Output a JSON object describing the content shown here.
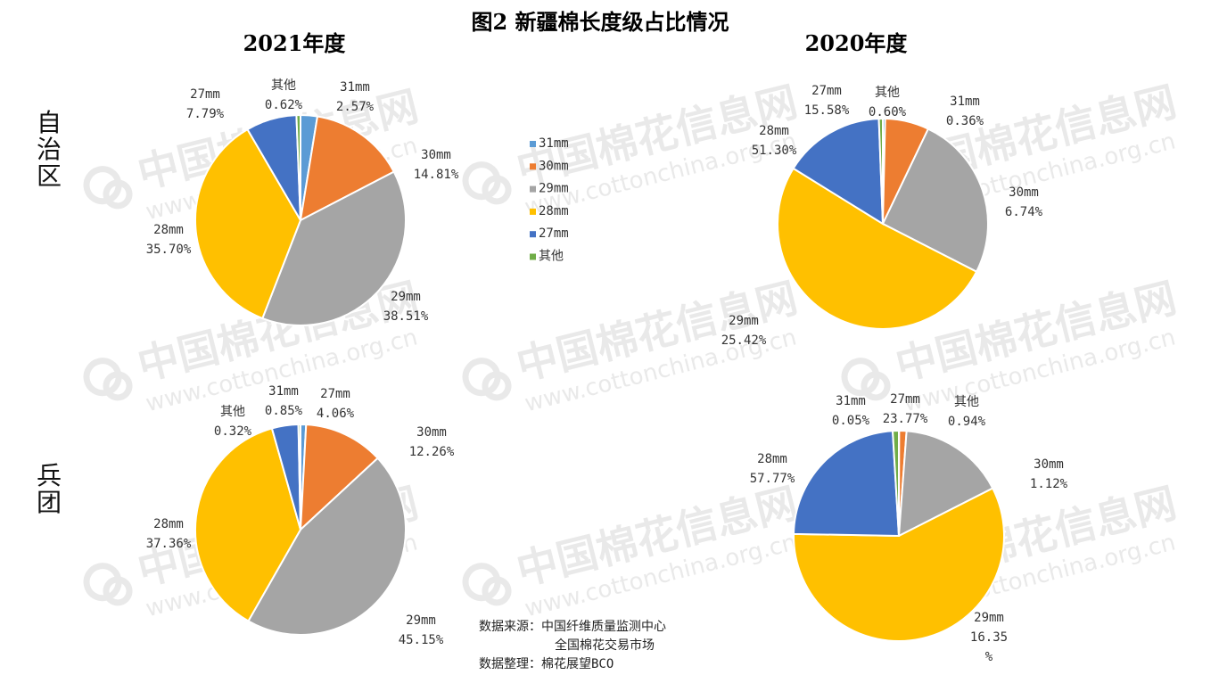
{
  "title": "图2 新疆棉长度级占比情况",
  "watermark": {
    "cn": "中国棉花信息网",
    "url": "www.cottonchina.org.cn"
  },
  "colors": {
    "31mm": "#5B9BD5",
    "30mm": "#ED7D31",
    "29mm": "#A5A5A5",
    "28mm": "#FFC000",
    "27mm": "#4472C4",
    "其他": "#70AD47"
  },
  "legend": {
    "items": [
      "31mm",
      "30mm",
      "29mm",
      "28mm",
      "27mm",
      "其他"
    ]
  },
  "column_labels": [
    "2021年度",
    "2020年度"
  ],
  "row_labels": [
    "自\n治\n区",
    "兵\n团"
  ],
  "source": {
    "line1": "数据来源：中国纤维质量监测中心",
    "line2": "全国棉花交易市场",
    "line3": "数据整理：棉花展望BCO"
  },
  "chart_data": [
    {
      "type": "pie",
      "title": "2021年度",
      "region": "自治区",
      "categories": [
        "31mm",
        "30mm",
        "29mm",
        "28mm",
        "27mm",
        "其他"
      ],
      "values": [
        2.57,
        14.81,
        38.51,
        35.7,
        7.79,
        0.62
      ],
      "value_labels": [
        "2.57%",
        "14.81%",
        "38.51%",
        "35.70%",
        "7.79%",
        "0.62%"
      ]
    },
    {
      "type": "pie",
      "title": "2020年度",
      "region": "自治区",
      "categories": [
        "31mm",
        "30mm",
        "29mm",
        "28mm",
        "27mm",
        "其他"
      ],
      "values": [
        0.36,
        6.74,
        25.42,
        51.3,
        15.58,
        0.6
      ],
      "value_labels": [
        "0.36%",
        "6.74%",
        "25.42%",
        "51.30%",
        "15.58%",
        "0.60%"
      ]
    },
    {
      "type": "pie",
      "title": "2021年度",
      "region": "兵团",
      "categories": [
        "31mm",
        "30mm",
        "29mm",
        "28mm",
        "27mm",
        "其他"
      ],
      "values": [
        0.85,
        12.26,
        45.15,
        37.36,
        4.06,
        0.32
      ],
      "value_labels": [
        "0.85%",
        "12.26%",
        "45.15%",
        "37.36%",
        "4.06%",
        "0.32%"
      ]
    },
    {
      "type": "pie",
      "title": "2020年度",
      "region": "兵团",
      "categories": [
        "31mm",
        "30mm",
        "29mm",
        "28mm",
        "27mm",
        "其他"
      ],
      "values": [
        0.05,
        1.12,
        16.35,
        57.77,
        23.77,
        0.94
      ],
      "value_labels": [
        "0.05%",
        "1.12%",
        "16.35\n%",
        "57.77%",
        "23.77%",
        "0.94%"
      ]
    }
  ]
}
